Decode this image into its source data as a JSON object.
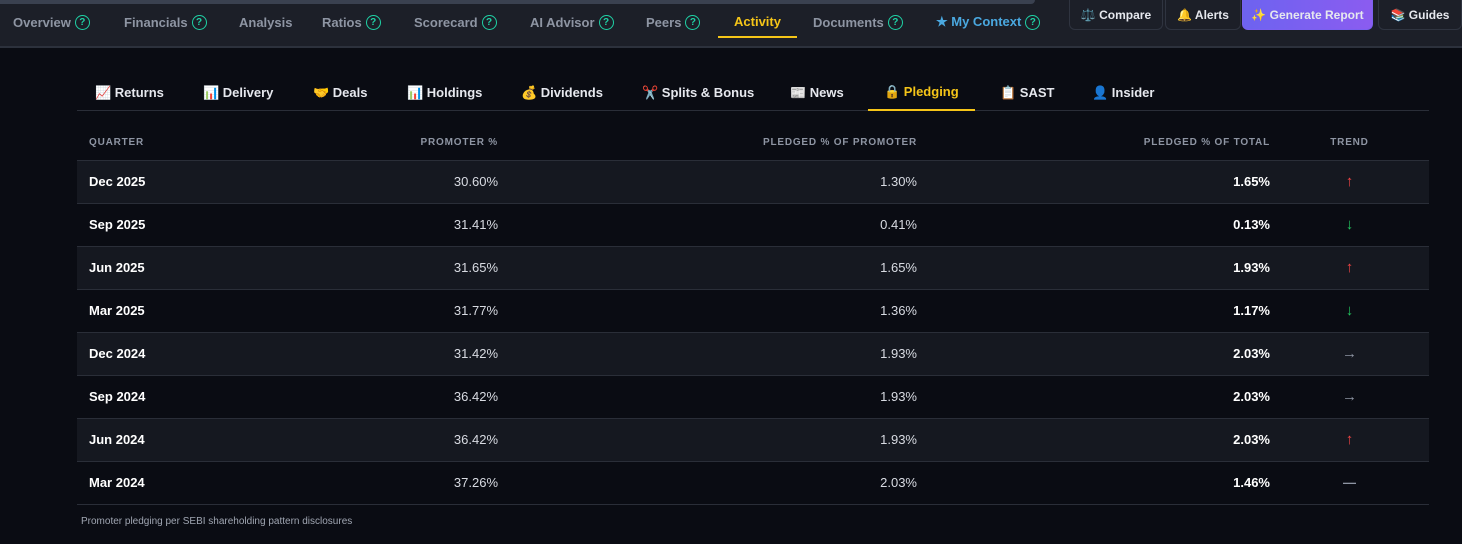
{
  "nav": {
    "items": [
      {
        "label": "Overview",
        "help": true
      },
      {
        "label": "Financials",
        "help": true
      },
      {
        "label": "Analysis",
        "help": false
      },
      {
        "label": "Ratios",
        "help": true
      },
      {
        "label": "Scorecard",
        "help": true
      },
      {
        "label": "AI Advisor",
        "help": true
      },
      {
        "label": "Peers",
        "help": true
      },
      {
        "label": "Activity",
        "help": false,
        "active": true
      },
      {
        "label": "Documents",
        "help": true
      },
      {
        "label": "★ My Context",
        "help": true
      }
    ],
    "help_glyph": "?",
    "buttons": {
      "compare": "⚖️ Compare",
      "alerts": "🔔 Alerts",
      "generate": "✨ Generate Report",
      "guides": "📚 Guides"
    }
  },
  "subtabs": [
    {
      "label": "📈 Returns"
    },
    {
      "label": "📊 Delivery"
    },
    {
      "label": "🤝 Deals"
    },
    {
      "label": "📊 Holdings"
    },
    {
      "label": "💰 Dividends"
    },
    {
      "label": "✂️ Splits & Bonus"
    },
    {
      "label": "📰 News"
    },
    {
      "label": "🔒 Pledging",
      "active": true
    },
    {
      "label": "📋 SAST"
    },
    {
      "label": "👤 Insider"
    }
  ],
  "table": {
    "headers": [
      "QUARTER",
      "PROMOTER %",
      "PLEDGED % OF PROMOTER",
      "PLEDGED % OF TOTAL",
      "TREND"
    ],
    "rows": [
      [
        "Dec 2025",
        "30.60%",
        "1.30%",
        "1.65%",
        "↑"
      ],
      [
        "Sep 2025",
        "31.41%",
        "0.41%",
        "0.13%",
        "↓"
      ],
      [
        "Jun 2025",
        "31.65%",
        "1.65%",
        "1.93%",
        "↑"
      ],
      [
        "Mar 2025",
        "31.77%",
        "1.36%",
        "1.17%",
        "↓"
      ],
      [
        "Dec 2024",
        "31.42%",
        "1.93%",
        "2.03%",
        "→"
      ],
      [
        "Sep 2024",
        "36.42%",
        "1.93%",
        "2.03%",
        "→"
      ],
      [
        "Jun 2024",
        "36.42%",
        "1.93%",
        "2.03%",
        "↑"
      ],
      [
        "Mar 2024",
        "37.26%",
        "2.03%",
        "1.46%",
        "—"
      ]
    ]
  },
  "trend_colors": {
    "↑": "#f04444",
    "↓": "#22c55e",
    "→": "#8e95a3",
    "—": "#8e95a3"
  },
  "footnote": "Promoter pledging per SEBI shareholding pattern disclosures"
}
